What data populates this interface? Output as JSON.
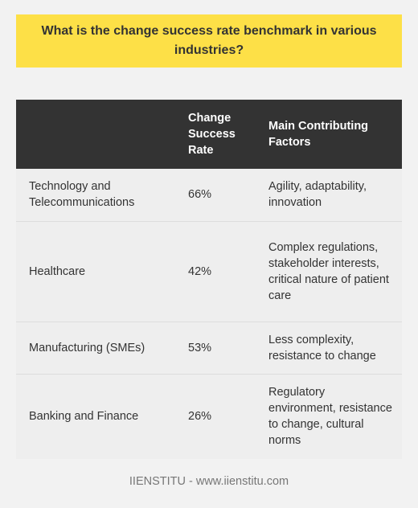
{
  "title": "What is the change success rate benchmark in various industries?",
  "table": {
    "headers": [
      "",
      "Change Success Rate",
      "Main Contributing Factors"
    ],
    "rows": [
      {
        "industry": "Technology and Telecommunications",
        "rate": "66%",
        "factors": "Agility, adaptability, innovation"
      },
      {
        "industry": "Healthcare",
        "rate": "42%",
        "factors": "Complex regulations, stakeholder interests, critical nature of patient care"
      },
      {
        "industry": "Manufacturing (SMEs)",
        "rate": "53%",
        "factors": "Less complexity, resistance to change"
      },
      {
        "industry": "Banking and Finance",
        "rate": "26%",
        "factors": "Regulatory environment, resistance to change, cultural norms"
      }
    ]
  },
  "footer": "IIENSTITU - www.iienstitu.com"
}
